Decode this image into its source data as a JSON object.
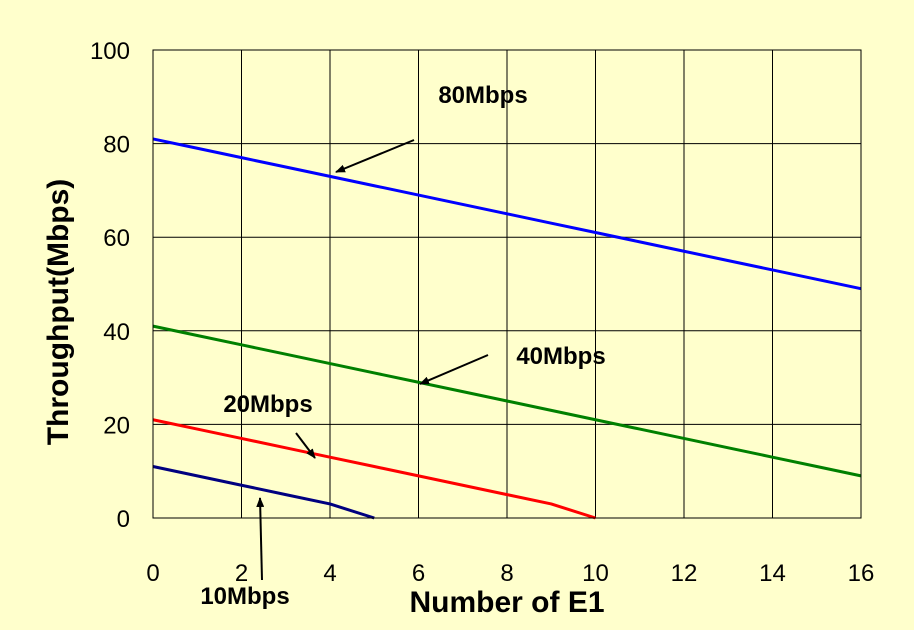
{
  "chart_data": {
    "type": "line",
    "title": "",
    "xlabel": "Number of E1",
    "ylabel": "Throughput(Mbps)",
    "xlim": [
      0,
      16
    ],
    "ylim": [
      0,
      100
    ],
    "x_ticks": [
      "0",
      "2",
      "4",
      "6",
      "8",
      "10",
      "12",
      "14",
      "16"
    ],
    "y_ticks": [
      "0",
      "20",
      "40",
      "60",
      "80",
      "100"
    ],
    "grid": true,
    "background_color": "#ffffcc",
    "series": [
      {
        "name": "80Mbps",
        "color": "#0000ff",
        "x": [
          0,
          1,
          2,
          3,
          4,
          5,
          6,
          7,
          8,
          9,
          10,
          11,
          12,
          13,
          14,
          15,
          16
        ],
        "y": [
          81,
          79,
          77,
          75,
          73,
          71,
          69,
          67,
          65,
          63,
          61,
          59,
          57,
          55,
          53,
          51,
          49
        ]
      },
      {
        "name": "40Mbps",
        "color": "#008000",
        "x": [
          0,
          1,
          2,
          3,
          4,
          5,
          6,
          7,
          8,
          9,
          10,
          11,
          12,
          13,
          14,
          15,
          16
        ],
        "y": [
          41,
          39,
          37,
          35,
          33,
          31,
          29,
          27,
          25,
          23,
          21,
          19,
          17,
          15,
          13,
          11,
          9
        ]
      },
      {
        "name": "20Mbps",
        "color": "#ff0000",
        "x": [
          0,
          1,
          2,
          3,
          4,
          5,
          6,
          7,
          8,
          9,
          10
        ],
        "y": [
          21,
          19,
          17,
          15,
          13,
          11,
          9,
          7,
          5,
          3,
          0
        ]
      },
      {
        "name": "10Mbps",
        "color": "#000080",
        "x": [
          0,
          1,
          2,
          3,
          4,
          5
        ],
        "y": [
          11,
          9,
          7,
          5,
          3,
          0
        ]
      }
    ]
  }
}
